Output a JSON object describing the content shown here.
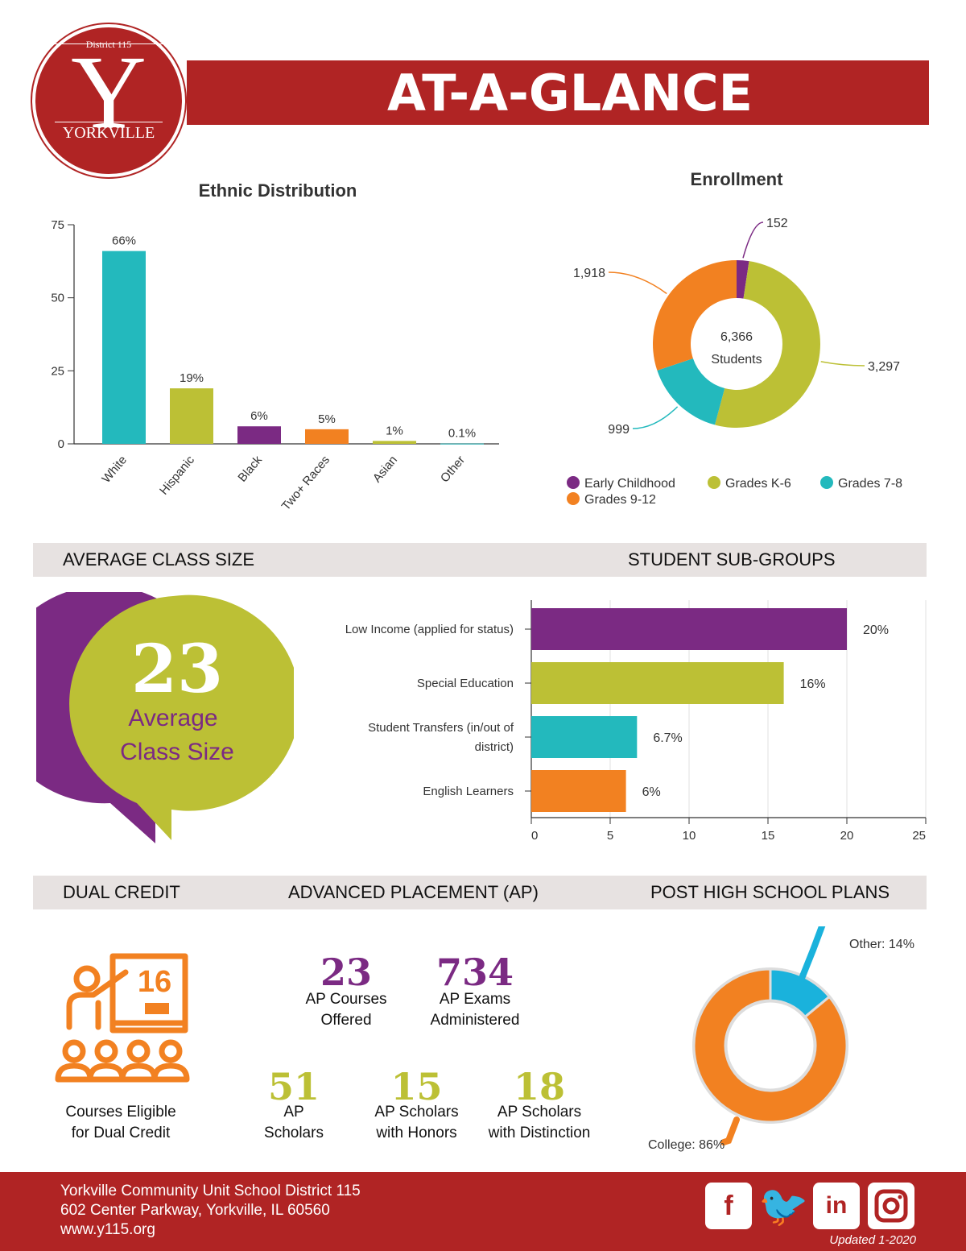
{
  "header": {
    "logo_district": "District 115",
    "logo_letter": "Y",
    "logo_town": "YORKVILLE",
    "title": "AT-A-GLANCE"
  },
  "ethnic": {
    "title": "Ethnic Distribution"
  },
  "enrollment": {
    "title": "Enrollment",
    "center_number": "6,366",
    "center_label": "Students"
  },
  "sections": {
    "class_size": "AVERAGE CLASS SIZE",
    "subgroups": "STUDENT SUB-GROUPS",
    "dual_credit": "DUAL CREDIT",
    "ap": "ADVANCED PLACEMENT (AP)",
    "post_hs": "POST HIGH SCHOOL PLANS"
  },
  "class_size": {
    "value": "23",
    "label_line1": "Average",
    "label_line2": "Class Size"
  },
  "dual_credit": {
    "value": "16",
    "label_line1": "Courses Eligible",
    "label_line2": "for Dual Credit"
  },
  "ap": {
    "stats": [
      {
        "value": "23",
        "line1": "AP Courses",
        "line2": "Offered"
      },
      {
        "value": "734",
        "line1": "AP Exams",
        "line2": "Administered"
      },
      {
        "value": "51",
        "line1": "AP",
        "line2": "Scholars"
      },
      {
        "value": "15",
        "line1": "AP Scholars",
        "line2": "with Honors"
      },
      {
        "value": "18",
        "line1": "AP Scholars",
        "line2": "with Distinction"
      }
    ]
  },
  "footer": {
    "line1": "Yorkville Community Unit School District 115",
    "line2": "602 Center Parkway, Yorkville, IL 60560",
    "line3": "www.y115.org",
    "updated": "Updated 1-2020"
  },
  "colors": {
    "brand_red": "#b02424",
    "teal": "#23b9bd",
    "lime": "#bcc035",
    "purple": "#7b2a83",
    "orange": "#f28121",
    "cyan": "#1ab2dc"
  },
  "chart_data": [
    {
      "type": "bar",
      "title": "Ethnic Distribution",
      "categories": [
        "White",
        "Hispanic",
        "Black",
        "Two+ Races",
        "Asian",
        "Other"
      ],
      "values": [
        66,
        19,
        6,
        5,
        1,
        0.1
      ],
      "data_labels": [
        "66%",
        "19%",
        "6%",
        "5%",
        "1%",
        "0.1%"
      ],
      "colors": [
        "#23b9bd",
        "#bcc035",
        "#7b2a83",
        "#f28121",
        "#bcc035",
        "#23b9bd"
      ],
      "ylim": [
        0,
        75
      ],
      "yticks": [
        0,
        25,
        50,
        75
      ],
      "grid": false
    },
    {
      "type": "pie",
      "title": "Enrollment",
      "labels": [
        "Early Childhood",
        "Grades K-6",
        "Grades 7-8",
        "Grades 9-12"
      ],
      "values": [
        152,
        3297,
        999,
        1918
      ],
      "data_labels": [
        "152",
        "3,297",
        "999",
        "1,918"
      ],
      "colors": [
        "#7b2a83",
        "#bcc035",
        "#23b9bd",
        "#f28121"
      ],
      "legend": "bottom"
    },
    {
      "type": "bar",
      "orientation": "horizontal",
      "title": "",
      "categories": [
        "Low Income (applied for status)",
        "Special Education",
        "Student Transfers (in/out of district)",
        "English Learners"
      ],
      "values": [
        20,
        16,
        6.7,
        6
      ],
      "data_labels": [
        "20%",
        "16%",
        "6.7%",
        "6%"
      ],
      "colors": [
        "#7b2a83",
        "#bcc035",
        "#23b9bd",
        "#f28121"
      ],
      "xlim": [
        0,
        25
      ],
      "xticks": [
        0,
        5,
        10,
        15,
        20,
        25
      ],
      "grid": true
    },
    {
      "type": "pie",
      "title": "",
      "labels": [
        "Other",
        "College"
      ],
      "values": [
        14,
        86
      ],
      "data_labels": [
        "Other: 14%",
        "College: 86%"
      ],
      "colors": [
        "#1ab2dc",
        "#f28121"
      ]
    }
  ]
}
